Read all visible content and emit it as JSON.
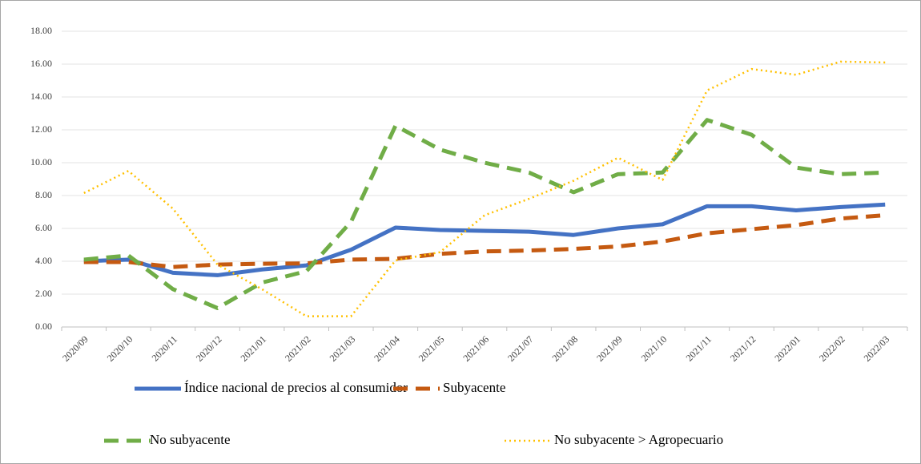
{
  "chart_data": {
    "type": "line",
    "categories": [
      "2020/09",
      "2020/10",
      "2020/11",
      "2020/12",
      "2021/01",
      "2021/02",
      "2021/03",
      "2021/04",
      "2021/05",
      "2021/06",
      "2021/07",
      "2021/08",
      "2021/09",
      "2021/10",
      "2021/11",
      "2021/12",
      "2022/01",
      "2022/02",
      "2022/03"
    ],
    "series": [
      {
        "name": "Índice nacional de precios al consumidor",
        "color": "#4472c4",
        "dash": "solid",
        "values": [
          4.0,
          4.1,
          3.3,
          3.15,
          3.5,
          3.75,
          4.7,
          6.05,
          5.9,
          5.85,
          5.8,
          5.6,
          6.0,
          6.25,
          7.35,
          7.35,
          7.1,
          7.3,
          7.45
        ]
      },
      {
        "name": "Subyacente",
        "color": "#c55a11",
        "dash": "dash",
        "values": [
          3.95,
          3.95,
          3.65,
          3.8,
          3.85,
          3.87,
          4.1,
          4.15,
          4.45,
          4.6,
          4.65,
          4.75,
          4.9,
          5.2,
          5.7,
          5.95,
          6.2,
          6.6,
          6.8
        ]
      },
      {
        "name": "No subyacente",
        "color": "#70ad47",
        "dash": "dash",
        "values": [
          4.1,
          4.35,
          2.3,
          1.15,
          2.7,
          3.4,
          6.4,
          12.25,
          10.8,
          10.0,
          9.4,
          8.2,
          9.3,
          9.4,
          12.6,
          11.7,
          9.7,
          9.3,
          9.4
        ]
      },
      {
        "name": "No subyacente > Agropecuario",
        "color": "#ffc000",
        "dash": "dot",
        "values": [
          8.15,
          9.5,
          7.2,
          3.8,
          2.3,
          0.65,
          0.65,
          4.05,
          4.55,
          6.8,
          7.8,
          8.9,
          10.3,
          8.95,
          14.4,
          15.7,
          15.35,
          16.15,
          16.1
        ]
      }
    ],
    "ylim": [
      0,
      18
    ],
    "yticks": [
      {
        "value": 0,
        "label": "0.00"
      },
      {
        "value": 2,
        "label": "2.00"
      },
      {
        "value": 4,
        "label": "4.00"
      },
      {
        "value": 6,
        "label": "6.00"
      },
      {
        "value": 8,
        "label": "8.00"
      },
      {
        "value": 10,
        "label": "10.00"
      },
      {
        "value": 12,
        "label": "12.00"
      },
      {
        "value": 14,
        "label": "14.00"
      },
      {
        "value": 16,
        "label": "16.00"
      },
      {
        "value": 18,
        "label": "18.00"
      }
    ],
    "grid": true,
    "legend": "bottom"
  }
}
